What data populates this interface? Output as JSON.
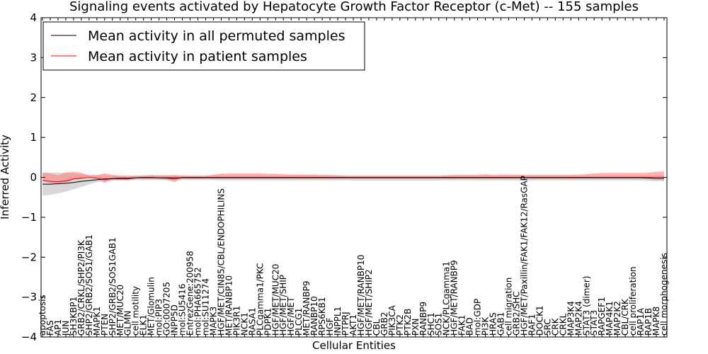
{
  "chart_data": {
    "type": "line",
    "title": "Signaling events activated by Hepatocyte Growth Factor Receptor (c-Met) -- 155 samples",
    "xlabel": "Cellular Entities",
    "ylabel": "Inferred Activity",
    "ylim": [
      -4,
      4
    ],
    "yticks": [
      "−4",
      "−3",
      "−2",
      "−1",
      "0",
      "1",
      "2",
      "3",
      "4"
    ],
    "grid": false,
    "legend_position": "top-left",
    "colors": {
      "permuted": "#000000",
      "patient": "#ff0000",
      "permuted_band": "#c8c8c8",
      "patient_band": "#ff8080"
    },
    "categories": [
      "apoptosis",
      "FAS",
      "AP1",
      "JUN",
      "SH3KBP1",
      "GRB2/CRKL/SHP2/PI3K",
      "SHP2/GRB2/SOS1/GAB1",
      "MAPK1",
      "PTEN",
      "SHP2/GRB2/SOS1GAB1",
      "MET/MUC20",
      "GLMN",
      "cell motility",
      "ELK1",
      "MET/Glomulin",
      "mol:PIP3",
      "GO:0007205",
      "INPP5D",
      "mol:SU5416",
      "EntrezGene:200958",
      "mol:PHA665752",
      "mol:SU11274",
      "MAPK3",
      "HGF/MET/CIN85/CBL/ENDOPHILINS",
      "MET/RANBP10",
      "PIK3R1",
      "NCK1",
      "RASA1",
      "PLCgamma1/PKC",
      "PDPK1",
      "HGF/MET/MUC20",
      "HGF/MET/SHIP",
      "HGF/MET",
      "PLCG1",
      "MET/RANBP9",
      "RANBP10",
      "RPS6KB1",
      "HGF",
      "INPPL1",
      "PTPRJ",
      "AKT1",
      "HGF/MET/RANBP10",
      "HGF/MET/SHIP2",
      "CBL",
      "GRB2",
      "PIK3CA",
      "PTK2",
      "PTK2B",
      "PXN",
      "RANBP9",
      "SHC1",
      "SOS1",
      "NCK/PLCgamma1",
      "HGF/MET/RANBP9",
      "FAK1",
      "BAD",
      "mol:GDP",
      "PI3K",
      "HRAS",
      "GAB1",
      "cell migration",
      "GRB2/SHC",
      "HGF/MET/Paxillin/FAK1/FAK12/RasGAP",
      "RAF1",
      "DOCK1",
      "SRC",
      "CRK",
      "CRKL",
      "MAP3K4",
      "MAP2K4",
      "STAT3 (dimer)",
      "STAT3",
      "RAPGEF1",
      "MAP4K1",
      "MAP2K2",
      "CBL/CRK",
      "cell proliferation",
      "RAP1A",
      "RAP1B",
      "MAPK8",
      "cell morphogenesis"
    ],
    "series": [
      {
        "name": "Mean activity in all permuted samples",
        "values": [
          -0.17,
          -0.17,
          -0.16,
          -0.15,
          -0.13,
          -0.1,
          -0.08,
          -0.06,
          -0.04,
          -0.03,
          -0.02,
          -0.02,
          -0.01,
          -0.01,
          -0.01,
          -0.01,
          -0.01,
          -0.01,
          -0.01,
          -0.01,
          -0.01,
          -0.01,
          -0.01,
          -0.01,
          -0.01,
          -0.01,
          -0.01,
          -0.01,
          -0.01,
          -0.01,
          -0.01,
          -0.01,
          -0.01,
          -0.01,
          -0.01,
          -0.01,
          -0.01,
          -0.01,
          -0.01,
          -0.01,
          -0.01,
          -0.01,
          -0.01,
          -0.01,
          -0.01,
          -0.01,
          -0.01,
          -0.01,
          -0.01,
          -0.01,
          -0.01,
          -0.01,
          -0.01,
          -0.01,
          -0.01,
          -0.01,
          -0.01,
          -0.01,
          -0.01,
          -0.01,
          -0.01,
          -0.01,
          -0.01,
          -0.01,
          -0.01,
          -0.01,
          -0.01,
          -0.01,
          -0.01,
          -0.01,
          -0.01,
          -0.01,
          -0.01,
          -0.01,
          -0.01,
          -0.01,
          -0.01,
          -0.01,
          -0.02,
          -0.03,
          -0.03
        ],
        "band_upper": [
          0.12,
          0.12,
          0.12,
          0.11,
          0.1,
          0.08,
          0.06,
          0.05,
          0.05,
          0.05,
          0.05,
          0.05,
          0.05,
          0.05,
          0.05,
          0.05,
          0.05,
          0.05,
          0.05,
          0.05,
          0.05,
          0.05,
          0.05,
          0.05,
          0.05,
          0.05,
          0.05,
          0.05,
          0.05,
          0.05,
          0.05,
          0.05,
          0.05,
          0.05,
          0.05,
          0.05,
          0.05,
          0.05,
          0.05,
          0.05,
          0.05,
          0.05,
          0.05,
          0.05,
          0.05,
          0.05,
          0.05,
          0.05,
          0.05,
          0.05,
          0.05,
          0.05,
          0.05,
          0.05,
          0.05,
          0.05,
          0.05,
          0.05,
          0.05,
          0.05,
          0.05,
          0.05,
          0.05,
          0.05,
          0.05,
          0.05,
          0.05,
          0.05,
          0.05,
          0.05,
          0.05,
          0.05,
          0.05,
          0.05,
          0.05,
          0.05,
          0.05,
          0.05,
          0.05,
          0.05,
          0.05
        ],
        "band_lower": [
          -0.46,
          -0.44,
          -0.4,
          -0.36,
          -0.3,
          -0.24,
          -0.18,
          -0.12,
          -0.1,
          -0.09,
          -0.08,
          -0.08,
          -0.07,
          -0.07,
          -0.07,
          -0.07,
          -0.07,
          -0.07,
          -0.07,
          -0.07,
          -0.07,
          -0.07,
          -0.07,
          -0.08,
          -0.08,
          -0.08,
          -0.08,
          -0.08,
          -0.08,
          -0.08,
          -0.08,
          -0.08,
          -0.08,
          -0.08,
          -0.08,
          -0.08,
          -0.08,
          -0.08,
          -0.08,
          -0.08,
          -0.08,
          -0.08,
          -0.08,
          -0.08,
          -0.08,
          -0.08,
          -0.08,
          -0.08,
          -0.08,
          -0.08,
          -0.08,
          -0.08,
          -0.08,
          -0.08,
          -0.08,
          -0.08,
          -0.08,
          -0.08,
          -0.08,
          -0.08,
          -0.08,
          -0.08,
          -0.08,
          -0.08,
          -0.08,
          -0.08,
          -0.08,
          -0.08,
          -0.08,
          -0.08,
          -0.08,
          -0.08,
          -0.08,
          -0.08,
          -0.08,
          -0.08,
          -0.08,
          -0.08,
          -0.09,
          -0.1,
          -0.1
        ]
      },
      {
        "name": "Mean activity in patient samples",
        "values": [
          -0.08,
          -0.1,
          -0.11,
          -0.09,
          -0.04,
          -0.02,
          0.0,
          -0.02,
          -0.06,
          -0.03,
          -0.04,
          -0.04,
          -0.01,
          0.0,
          0.0,
          -0.01,
          -0.02,
          -0.04,
          0.0,
          0.0,
          0.0,
          0.0,
          0.0,
          0.0,
          0.0,
          0.0,
          0.0,
          0.0,
          0.0,
          0.0,
          0.0,
          0.0,
          0.0,
          0.0,
          0.0,
          0.0,
          0.0,
          0.0,
          0.0,
          0.0,
          0.0,
          0.0,
          0.0,
          0.0,
          0.0,
          0.0,
          0.0,
          0.0,
          0.0,
          0.0,
          0.0,
          0.0,
          0.0,
          0.0,
          0.0,
          0.0,
          0.0,
          0.0,
          0.0,
          0.0,
          0.0,
          0.0,
          0.0,
          0.0,
          0.0,
          0.0,
          0.0,
          0.0,
          0.0,
          0.0,
          0.0,
          0.0,
          0.0,
          0.0,
          0.0,
          0.0,
          0.0,
          0.0,
          0.0,
          0.0,
          0.0
        ],
        "band_upper": [
          0.12,
          0.1,
          0.05,
          0.12,
          0.14,
          0.12,
          0.05,
          0.06,
          0.1,
          0.06,
          0.03,
          0.03,
          0.03,
          0.04,
          0.06,
          0.05,
          0.05,
          0.06,
          0.04,
          0.03,
          0.03,
          0.03,
          0.07,
          0.09,
          0.1,
          0.1,
          0.1,
          0.1,
          0.1,
          0.09,
          0.09,
          0.08,
          0.07,
          0.07,
          0.07,
          0.07,
          0.06,
          0.06,
          0.05,
          0.04,
          0.03,
          0.03,
          0.03,
          0.03,
          0.03,
          0.03,
          0.03,
          0.03,
          0.03,
          0.03,
          0.03,
          0.03,
          0.05,
          0.06,
          0.06,
          0.06,
          0.06,
          0.08,
          0.06,
          0.07,
          0.07,
          0.07,
          0.06,
          0.06,
          0.06,
          0.06,
          0.06,
          0.06,
          0.06,
          0.07,
          0.08,
          0.1,
          0.11,
          0.11,
          0.11,
          0.11,
          0.11,
          0.11,
          0.12,
          0.14,
          0.15
        ],
        "band_lower": [
          -0.08,
          -0.15,
          -0.15,
          -0.14,
          -0.06,
          -0.04,
          0.0,
          -0.04,
          -0.14,
          -0.06,
          -0.06,
          -0.06,
          -0.03,
          -0.02,
          -0.02,
          -0.04,
          -0.06,
          -0.12,
          -0.02,
          -0.01,
          -0.01,
          -0.02,
          -0.02,
          -0.02,
          -0.02,
          -0.02,
          -0.02,
          -0.02,
          -0.02,
          -0.02,
          -0.02,
          -0.02,
          -0.02,
          -0.02,
          -0.02,
          -0.02,
          -0.02,
          -0.01,
          -0.01,
          -0.01,
          -0.01,
          -0.01,
          -0.01,
          -0.01,
          -0.01,
          -0.01,
          -0.01,
          -0.01,
          -0.01,
          -0.01,
          -0.01,
          -0.01,
          -0.01,
          -0.01,
          -0.01,
          -0.01,
          -0.01,
          -0.01,
          -0.01,
          -0.01,
          -0.01,
          -0.01,
          -0.01,
          -0.01,
          -0.01,
          -0.01,
          -0.01,
          -0.01,
          -0.01,
          -0.01,
          -0.01,
          -0.01,
          -0.01,
          -0.01,
          -0.01,
          -0.01,
          -0.01,
          -0.01,
          -0.01,
          -0.01,
          -0.01
        ]
      }
    ]
  }
}
